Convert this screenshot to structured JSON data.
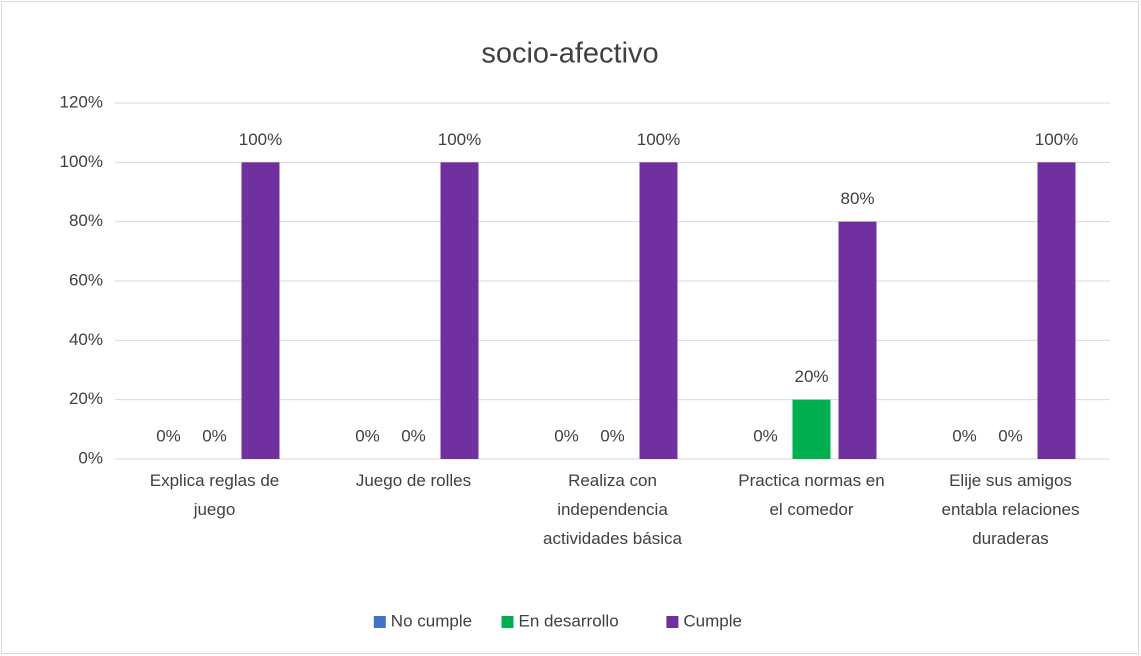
{
  "chart_data": {
    "type": "bar",
    "title": "socio-afectivo",
    "categories": [
      "Explica reglas de juego",
      "Juego de rolles",
      "Realiza con independencia actividades básica",
      "Practica normas en el comedor",
      "Elije sus amigos entabla relaciones duraderas"
    ],
    "series": [
      {
        "name": "No cumple",
        "color": "#4472c4",
        "values": [
          0,
          0,
          0,
          0,
          0
        ],
        "value_labels": [
          "0%",
          "0%",
          "0%",
          "0%",
          "0%"
        ]
      },
      {
        "name": "En desarrollo",
        "color": "#00b050",
        "values": [
          0,
          0,
          0,
          20,
          0
        ],
        "value_labels": [
          "0%",
          "0%",
          "0%",
          "20%",
          "0%"
        ]
      },
      {
        "name": "Cumple",
        "color": "#7030a0",
        "values": [
          100,
          100,
          100,
          80,
          100
        ],
        "value_labels": [
          "100%",
          "100%",
          "100%",
          "80%",
          "100%"
        ]
      }
    ],
    "ylim": [
      0,
      120
    ],
    "yticks": [
      {
        "value": 0,
        "label": "0%"
      },
      {
        "value": 20,
        "label": "20%"
      },
      {
        "value": 40,
        "label": "40%"
      },
      {
        "value": 60,
        "label": "60%"
      },
      {
        "value": 80,
        "label": "80%"
      },
      {
        "value": 100,
        "label": "100%"
      },
      {
        "value": 120,
        "label": "120%"
      }
    ],
    "grid": true,
    "legend": "bottom"
  }
}
